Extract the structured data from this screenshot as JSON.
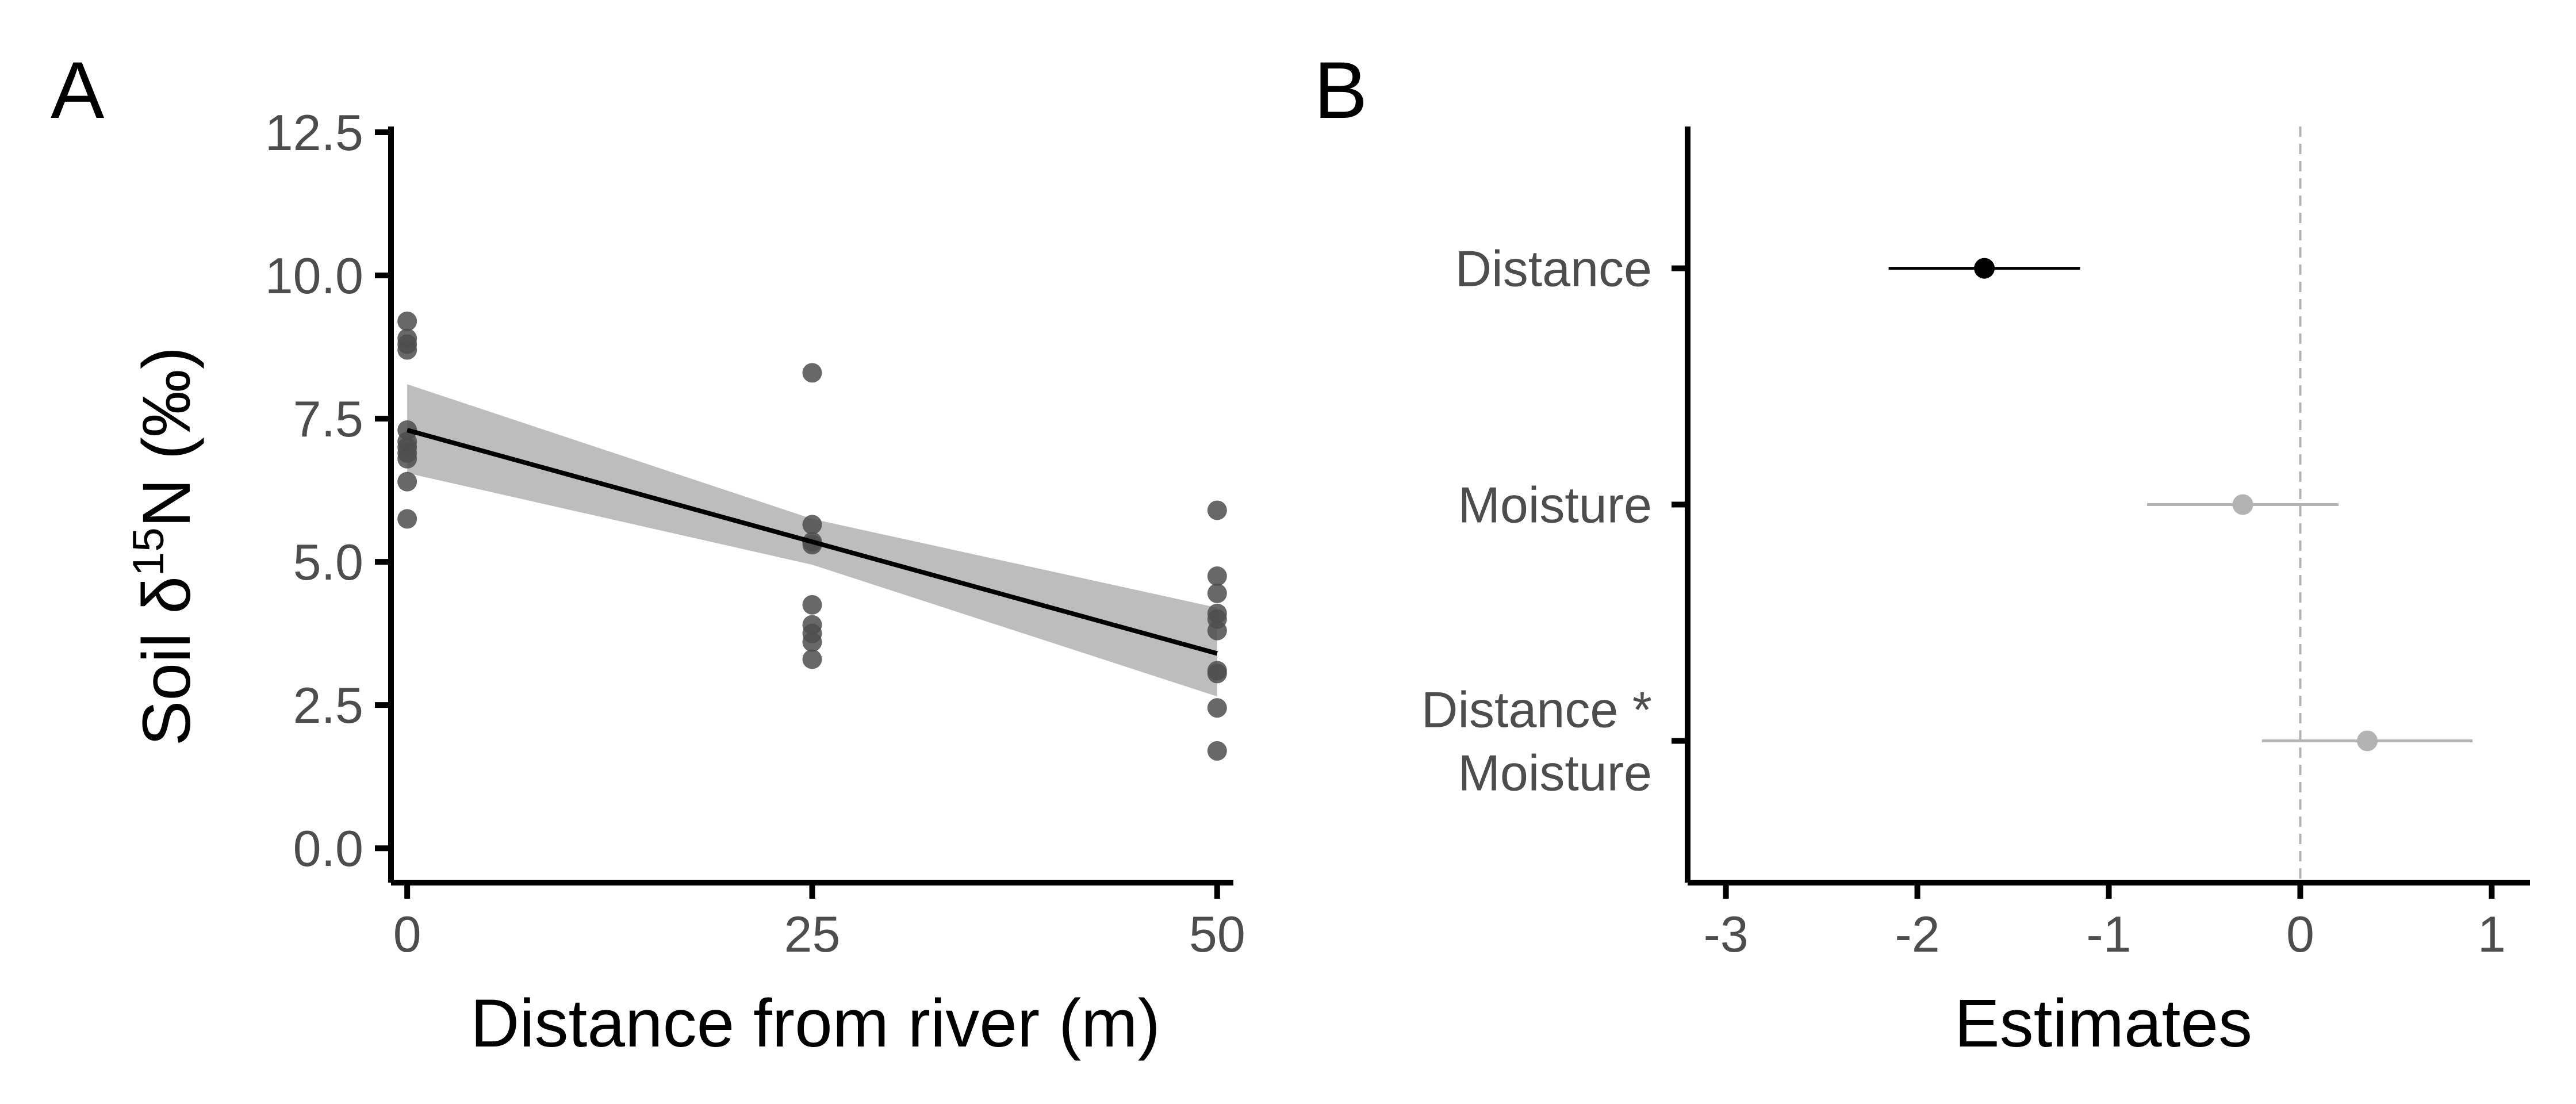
{
  "chart_data": [
    {
      "type": "scatter",
      "panel_label": "A",
      "xlabel": "Distance from river (m)",
      "ylabel_main": "Soil δ",
      "ylabel_sup": "15",
      "ylabel_tail": "N (‰)",
      "xlim": [
        -1,
        51
      ],
      "ylim": [
        -0.6,
        12.6
      ],
      "xticks": [
        0,
        25,
        50
      ],
      "xtick_labels": [
        "0",
        "25",
        "50"
      ],
      "yticks": [
        0,
        2.5,
        5,
        7.5,
        10,
        12.5
      ],
      "ytick_labels": [
        "0.0",
        "2.5",
        "5.0",
        "7.5",
        "10.0",
        "12.5"
      ],
      "grid": false,
      "colors": {
        "points": "#4d4d4d",
        "line": "#000000",
        "ribbon": "#bdbdbd"
      },
      "points": [
        {
          "x": 0,
          "y": 9.2
        },
        {
          "x": 0,
          "y": 8.9
        },
        {
          "x": 0,
          "y": 8.8
        },
        {
          "x": 0,
          "y": 8.7
        },
        {
          "x": 0,
          "y": 7.3
        },
        {
          "x": 0,
          "y": 7.1
        },
        {
          "x": 0,
          "y": 7.0
        },
        {
          "x": 0,
          "y": 6.9
        },
        {
          "x": 0,
          "y": 6.8
        },
        {
          "x": 0,
          "y": 6.4
        },
        {
          "x": 0,
          "y": 5.75
        },
        {
          "x": 25,
          "y": 8.3
        },
        {
          "x": 25,
          "y": 5.65
        },
        {
          "x": 25,
          "y": 5.35
        },
        {
          "x": 25,
          "y": 5.3
        },
        {
          "x": 25,
          "y": 4.25
        },
        {
          "x": 25,
          "y": 3.9
        },
        {
          "x": 25,
          "y": 3.75
        },
        {
          "x": 25,
          "y": 3.6
        },
        {
          "x": 25,
          "y": 3.3
        },
        {
          "x": 50,
          "y": 5.9
        },
        {
          "x": 50,
          "y": 4.75
        },
        {
          "x": 50,
          "y": 4.45
        },
        {
          "x": 50,
          "y": 4.1
        },
        {
          "x": 50,
          "y": 4.0
        },
        {
          "x": 50,
          "y": 3.8
        },
        {
          "x": 50,
          "y": 3.1
        },
        {
          "x": 50,
          "y": 3.05
        },
        {
          "x": 50,
          "y": 2.45
        },
        {
          "x": 50,
          "y": 1.7
        }
      ],
      "fit": {
        "x": [
          0,
          25,
          50
        ],
        "y": [
          7.3,
          5.35,
          3.4
        ],
        "lower": [
          6.55,
          4.95,
          2.65
        ],
        "upper": [
          8.1,
          5.75,
          4.2
        ]
      }
    },
    {
      "type": "coefficient",
      "panel_label": "B",
      "xlabel": "Estimates",
      "xlim": [
        -3.2,
        1.2
      ],
      "xticks": [
        -3,
        -2,
        -1,
        0,
        1
      ],
      "xtick_labels": [
        "-3",
        "-2",
        "-1",
        "0",
        "1"
      ],
      "reference_line": 0,
      "grid": false,
      "colors": {
        "significant": "#000000",
        "nonsignificant": "#b3b3b3",
        "reference": "#b3b3b3"
      },
      "terms": [
        {
          "label_lines": [
            "Distance"
          ],
          "estimate": -1.65,
          "lower": -2.15,
          "upper": -1.15,
          "significant": true
        },
        {
          "label_lines": [
            "Moisture"
          ],
          "estimate": -0.3,
          "lower": -0.8,
          "upper": 0.2,
          "significant": false
        },
        {
          "label_lines": [
            "Distance *",
            "Moisture"
          ],
          "estimate": 0.35,
          "lower": -0.2,
          "upper": 0.9,
          "significant": false
        }
      ]
    }
  ]
}
